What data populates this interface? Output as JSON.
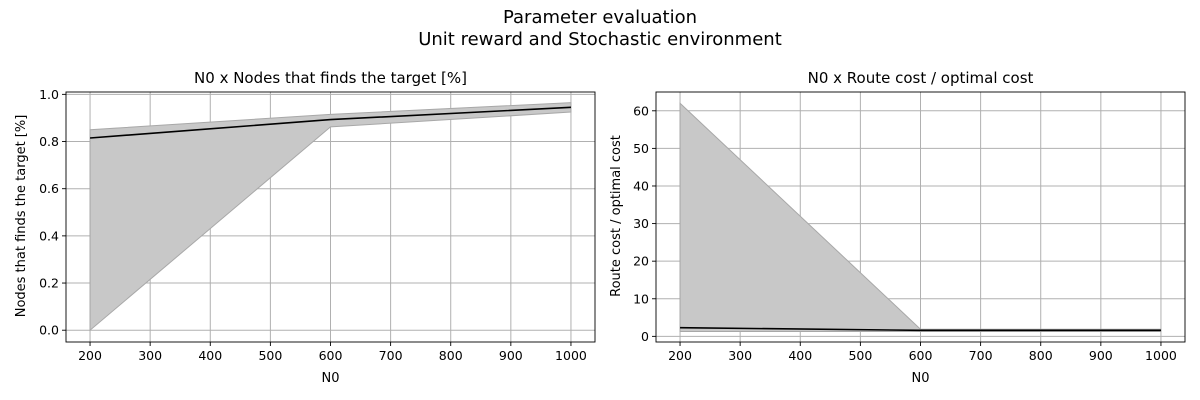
{
  "figure": {
    "title_line1": "Parameter evaluation",
    "title_line2": "Unit reward and Stochastic environment"
  },
  "style": {
    "line_color": "#000000",
    "band_color": "#c8c8c8",
    "band_edge_color": "#a8a8a8",
    "grid_color": "#b0b0b0"
  },
  "chart_data": [
    {
      "type": "line",
      "title": "N0 x Nodes that finds the target [%]",
      "xlabel": "N0",
      "ylabel": "Nodes that finds the target [%]",
      "xlim": [
        160,
        1040
      ],
      "ylim": [
        -0.05,
        1.01
      ],
      "xticks": [
        200,
        300,
        400,
        500,
        600,
        700,
        800,
        900,
        1000
      ],
      "yticks": [
        0.0,
        0.2,
        0.4,
        0.6,
        0.8,
        1.0
      ],
      "ytick_labels": [
        "0.0",
        "0.2",
        "0.4",
        "0.6",
        "0.8",
        "1.0"
      ],
      "grid": true,
      "x": [
        200,
        600,
        1000
      ],
      "mean": [
        0.815,
        0.893,
        0.945
      ],
      "band_lower": [
        0.0,
        0.862,
        0.925
      ],
      "band_upper": [
        0.85,
        0.915,
        0.965
      ]
    },
    {
      "type": "line",
      "title": "N0 x Route cost / optimal cost",
      "xlabel": "N0",
      "ylabel": "Route cost / optimal cost",
      "xlim": [
        160,
        1040
      ],
      "ylim": [
        -1.5,
        65
      ],
      "xticks": [
        200,
        300,
        400,
        500,
        600,
        700,
        800,
        900,
        1000
      ],
      "yticks": [
        0,
        10,
        20,
        30,
        40,
        50,
        60
      ],
      "ytick_labels": [
        "0",
        "10",
        "20",
        "30",
        "40",
        "50",
        "60"
      ],
      "grid": true,
      "x": [
        200,
        600,
        1000
      ],
      "mean": [
        2.3,
        1.6,
        1.6
      ],
      "band_lower": [
        1.3,
        1.3,
        1.3
      ],
      "band_upper": [
        62,
        1.9,
        1.9
      ]
    }
  ]
}
